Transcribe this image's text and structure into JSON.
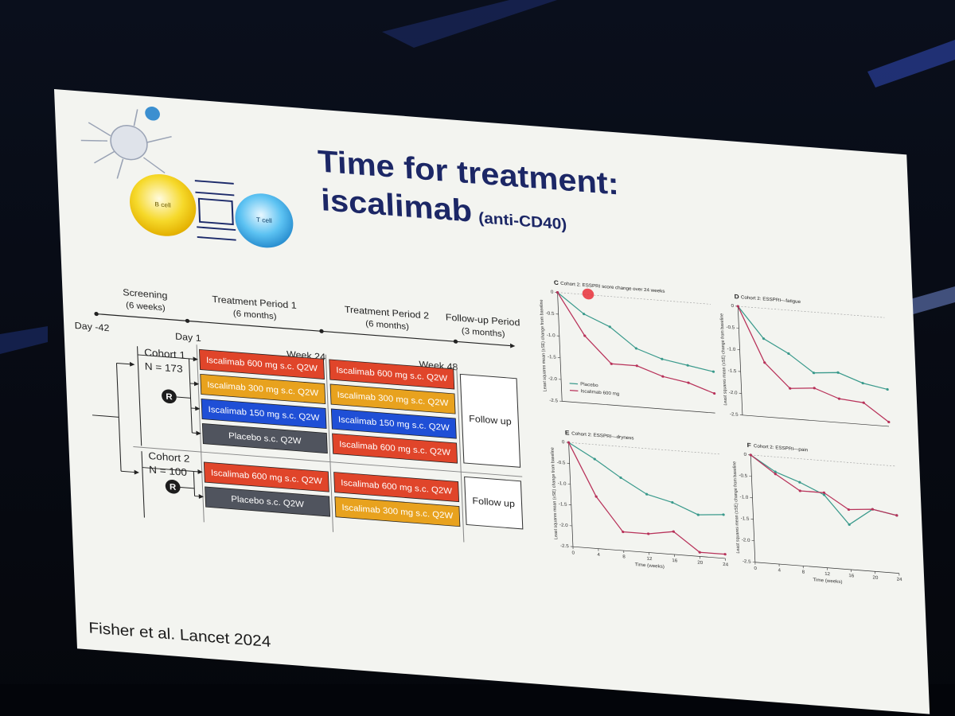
{
  "slide": {
    "title_line1": "Time for treatment:",
    "title_line2": "iscalimab",
    "title_note": "(anti-CD40)",
    "citation": "Fisher et al. Lancet 2024"
  },
  "figure": {
    "b_cell": "B cell",
    "t_cell": "T cell"
  },
  "design": {
    "timeline": [
      {
        "name": "Screening",
        "duration": "(6 weeks)"
      },
      {
        "name": "Treatment Period 1",
        "duration": "(6 months)"
      },
      {
        "name": "Treatment Period 2",
        "duration": "(6 months)"
      },
      {
        "name": "Follow-up Period",
        "duration": "(3 months)"
      }
    ],
    "milestones": [
      "Day -42",
      "Day 1",
      "Week 24",
      "Week 48"
    ],
    "randomization": "R",
    "cohorts": [
      {
        "name": "Cohort 1",
        "n": "N = 173",
        "follow_up": "Follow up",
        "period1": [
          {
            "label": "Iscalimab 600 mg s.c. Q2W",
            "color": "#e0452a"
          },
          {
            "label": "Iscalimab 300 mg s.c. Q2W",
            "color": "#e8a21e"
          },
          {
            "label": "Iscalimab 150 mg s.c. Q2W",
            "color": "#1f4fd6"
          },
          {
            "label": "Placebo s.c. Q2W",
            "color": "#50545e"
          }
        ],
        "period2": [
          {
            "label": "Iscalimab 600 mg s.c. Q2W",
            "color": "#e0452a"
          },
          {
            "label": "Iscalimab 300 mg s.c. Q2W",
            "color": "#e8a21e"
          },
          {
            "label": "Iscalimab 150 mg s.c. Q2W",
            "color": "#1f4fd6"
          },
          {
            "label": "Iscalimab 600 mg s.c. Q2W",
            "color": "#e0452a"
          }
        ]
      },
      {
        "name": "Cohort 2",
        "n": "N = 100",
        "follow_up": "Follow up",
        "period1": [
          {
            "label": "Iscalimab 600 mg s.c. Q2W",
            "color": "#e0452a"
          },
          {
            "label": "Placebo s.c. Q2W",
            "color": "#50545e"
          }
        ],
        "period2": [
          {
            "label": "Iscalimab 600 mg s.c. Q2W",
            "color": "#e0452a"
          },
          {
            "label": "Iscalimab 300 mg s.c. Q2W",
            "color": "#e8a21e"
          }
        ]
      }
    ]
  },
  "chart_data": [
    {
      "type": "line",
      "panel": "C",
      "title": "Cohort 2: ESSPRI score change over 24 weeks",
      "ylabel": "Least squares mean (±SE) change from baseline",
      "x": [
        0,
        4,
        8,
        12,
        16,
        20,
        24
      ],
      "xlim": [
        0,
        24
      ],
      "ylim": [
        -2.5,
        0
      ],
      "yticks": [
        0,
        -0.5,
        {
          "value": -1,
          "label": "-1.0"
        },
        -1.5,
        {
          "value": -2,
          "label": "-2.0"
        },
        -2.5
      ],
      "series": [
        {
          "name": "Placebo",
          "color": "#3a9a8c",
          "values": [
            0,
            -0.45,
            -0.7,
            -1.15,
            -1.35,
            -1.45,
            -1.55
          ]
        },
        {
          "name": "Iscalimab 600 mg",
          "color": "#b8325a",
          "values": [
            0,
            -0.95,
            -1.55,
            -1.55,
            -1.75,
            -1.85,
            -2.05
          ]
        }
      ]
    },
    {
      "type": "line",
      "panel": "D",
      "title": "Cohort 2: ESSPRI—fatigue",
      "ylabel": "Least squares mean (±SE) change from baseline",
      "x": [
        0,
        4,
        8,
        12,
        16,
        20,
        24
      ],
      "xlim": [
        0,
        24
      ],
      "ylim": [
        -2.5,
        0
      ],
      "yticks": [
        0,
        -0.5,
        {
          "value": -1,
          "label": "-1.0"
        },
        -1.5,
        {
          "value": -2,
          "label": "-2.0"
        },
        -2.5
      ],
      "series": [
        {
          "color": "#3a9a8c",
          "values": [
            0,
            -0.7,
            -1.0,
            -1.4,
            -1.35,
            -1.55,
            -1.65
          ]
        },
        {
          "color": "#b8325a",
          "values": [
            0,
            -1.25,
            -1.8,
            -1.75,
            -1.95,
            -2.0,
            -2.4
          ]
        }
      ]
    },
    {
      "type": "line",
      "panel": "E",
      "title": "Cohort 2: ESSPRI—dryness",
      "ylabel": "Least squares mean (±SE) change from baseline",
      "xlabel": "Time (weeks)",
      "x": [
        0,
        4,
        8,
        12,
        16,
        20,
        24
      ],
      "xlim": [
        0,
        24
      ],
      "xticks": [
        0,
        4,
        8,
        12,
        16,
        20,
        24
      ],
      "ylim": [
        -2.5,
        0
      ],
      "yticks": [
        0,
        -0.5,
        {
          "value": -1,
          "label": "-1.0"
        },
        -1.5,
        {
          "value": -2,
          "label": "-2.0"
        },
        -2.5
      ],
      "series": [
        {
          "color": "#3a9a8c",
          "values": [
            0,
            -0.35,
            -0.75,
            -1.1,
            -1.25,
            -1.5,
            -1.45
          ]
        },
        {
          "color": "#b8325a",
          "values": [
            0,
            -1.25,
            -2.05,
            -2.05,
            -1.95,
            -2.4,
            -2.4
          ]
        }
      ]
    },
    {
      "type": "line",
      "panel": "F",
      "title": "Cohort 2: ESSPRI—pain",
      "ylabel": "Least squares mean (±SE) change from baseline",
      "xlabel": "Time (weeks)",
      "x": [
        0,
        4,
        8,
        12,
        16,
        20,
        24
      ],
      "xlim": [
        0,
        24
      ],
      "xticks": [
        0,
        4,
        8,
        12,
        16,
        20,
        24
      ],
      "ylim": [
        -2.5,
        0
      ],
      "yticks": [
        0,
        -0.5,
        {
          "value": -1,
          "label": "-1.0"
        },
        -1.5,
        {
          "value": -2,
          "label": "-2.0"
        },
        -2.5
      ],
      "series": [
        {
          "color": "#3a9a8c",
          "values": [
            0,
            -0.35,
            -0.55,
            -0.8,
            -1.45,
            -1.05,
            -1.15
          ]
        },
        {
          "color": "#b8325a",
          "values": [
            0,
            -0.4,
            -0.75,
            -0.75,
            -1.1,
            -1.05,
            -1.15
          ]
        }
      ]
    }
  ]
}
